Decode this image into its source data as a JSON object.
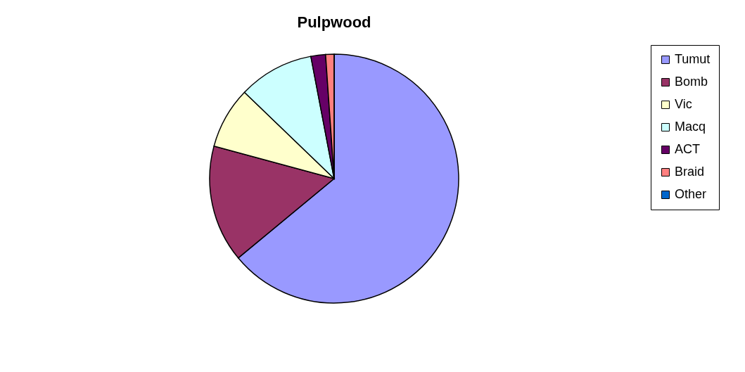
{
  "chart_data": {
    "type": "pie",
    "title": "Pulpwood",
    "categories": [
      "Tumut",
      "Bomb",
      "Vic",
      "Macq",
      "ACT",
      "Braid",
      "Other"
    ],
    "values": [
      64,
      15.2,
      8,
      9.8,
      1.9,
      1.1,
      0
    ],
    "colors": [
      "#9999ff",
      "#993366",
      "#ffffcc",
      "#ccffff",
      "#660066",
      "#ff8080",
      "#0066cc"
    ],
    "legend": "right"
  }
}
